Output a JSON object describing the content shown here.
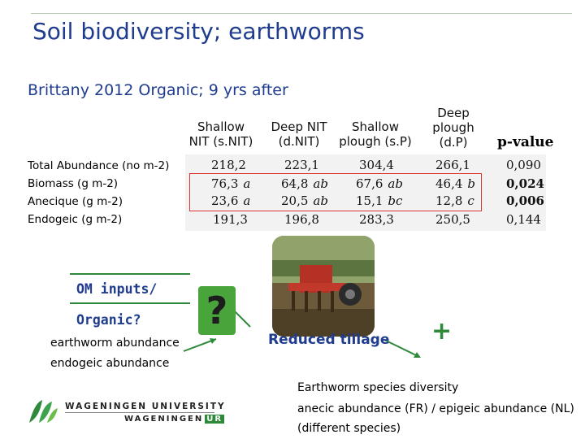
{
  "title": "Soil biodiversity; earthworms",
  "subtitle": "Brittany 2012 Organic; 9 yrs after",
  "table": {
    "columns": [
      {
        "line1": "Shallow",
        "line2": "NIT (s.NIT)"
      },
      {
        "line1": "Deep NIT",
        "line2": "(d.NIT)"
      },
      {
        "line1": "Shallow",
        "line2": "plough (s.P)"
      },
      {
        "line1": "Deep",
        "line2": "plough",
        "line3": "(d.P)"
      }
    ],
    "pvalue_header": "p-value",
    "rows": [
      {
        "label": "Total Abundance (no m-2)",
        "values": [
          "218,2",
          "223,1",
          "304,4",
          "266,1"
        ],
        "sig": [
          "",
          "",
          "",
          ""
        ],
        "pvalue": "0,090"
      },
      {
        "label": "Biomass (g m-2)",
        "values": [
          "76,3",
          "64,8",
          "67,6",
          "46,4"
        ],
        "sig": [
          "a",
          "ab",
          "ab",
          "b"
        ],
        "pvalue": "0,024"
      },
      {
        "label": "Anecique (g m-2)",
        "values": [
          "23,6",
          "20,5",
          "15,1",
          "12,8"
        ],
        "sig": [
          "a",
          "ab",
          "bc",
          "c"
        ],
        "pvalue": "0,006"
      },
      {
        "label": "Endogeic (g m-2)",
        "values": [
          "191,3",
          "196,8",
          "283,3",
          "250,5"
        ],
        "sig": [
          "",
          "",
          "",
          ""
        ],
        "pvalue": "0,144"
      }
    ]
  },
  "left_block": {
    "line1": "OM inputs/",
    "line2": "Organic?",
    "text1": "earthworm abundance",
    "text2": "endogeic abundance"
  },
  "question_mark": "?",
  "reduced_tillage": "Reduced tillage",
  "plus_sign": "+",
  "right_block": {
    "line1": "Earthworm species diversity",
    "line2": "anecic abundance (FR) / epigeic abundance (NL)",
    "line3": "(different species)"
  },
  "logo": {
    "line1": "WAGENINGEN UNIVERSITY",
    "line2a": "WAGENINGEN",
    "line2b": "UR"
  },
  "colors": {
    "title_blue": "#1f3c8f",
    "accent_green": "#2e8a3a",
    "highlight_red": "#d33333"
  }
}
